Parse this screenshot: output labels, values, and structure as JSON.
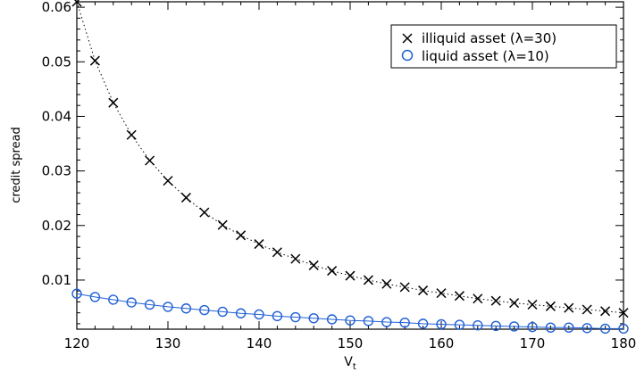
{
  "chart_data": {
    "type": "scatter",
    "title": "",
    "xlabel": "V",
    "xlabel_subscript": "t",
    "ylabel": "credit spread",
    "xlim": [
      120,
      180
    ],
    "ylim": [
      0.001,
      0.061
    ],
    "xticks": [
      120,
      130,
      140,
      150,
      160,
      170,
      180
    ],
    "yticks": [
      0.01,
      0.02,
      0.03,
      0.04,
      0.05,
      0.06
    ],
    "ytick_labels": [
      "0.01",
      "0.02",
      "0.03",
      "0.04",
      "0.05",
      "0.06"
    ],
    "grid": false,
    "legend_position": "top-right",
    "x": [
      120,
      122,
      124,
      126,
      128,
      130,
      132,
      134,
      136,
      138,
      140,
      142,
      144,
      146,
      148,
      150,
      152,
      154,
      156,
      158,
      160,
      162,
      164,
      166,
      168,
      170,
      172,
      174,
      176,
      178,
      180
    ],
    "series": [
      {
        "name": "illiquid asset (λ=30)",
        "marker": "x",
        "color": "#000000",
        "line": "dotted",
        "values": [
          0.061,
          0.0502,
          0.0425,
          0.0366,
          0.0319,
          0.0282,
          0.0251,
          0.0224,
          0.0201,
          0.0182,
          0.0166,
          0.0151,
          0.0139,
          0.0127,
          0.0117,
          0.0108,
          0.01,
          0.0093,
          0.0087,
          0.0081,
          0.0076,
          0.0071,
          0.0066,
          0.0062,
          0.0058,
          0.0055,
          0.0052,
          0.0049,
          0.0046,
          0.0043,
          0.004
        ]
      },
      {
        "name": "liquid asset (λ=10)",
        "marker": "o",
        "color": "#1f5fd6",
        "line": "solid",
        "values": [
          0.0075,
          0.0069,
          0.0064,
          0.0059,
          0.0055,
          0.0051,
          0.0048,
          0.0045,
          0.0042,
          0.0039,
          0.0037,
          0.0034,
          0.0032,
          0.003,
          0.0028,
          0.0026,
          0.0025,
          0.0023,
          0.0022,
          0.002,
          0.0019,
          0.0018,
          0.0017,
          0.0016,
          0.0015,
          0.0014,
          0.0013,
          0.0013,
          0.0012,
          0.0011,
          0.0011
        ]
      }
    ]
  }
}
